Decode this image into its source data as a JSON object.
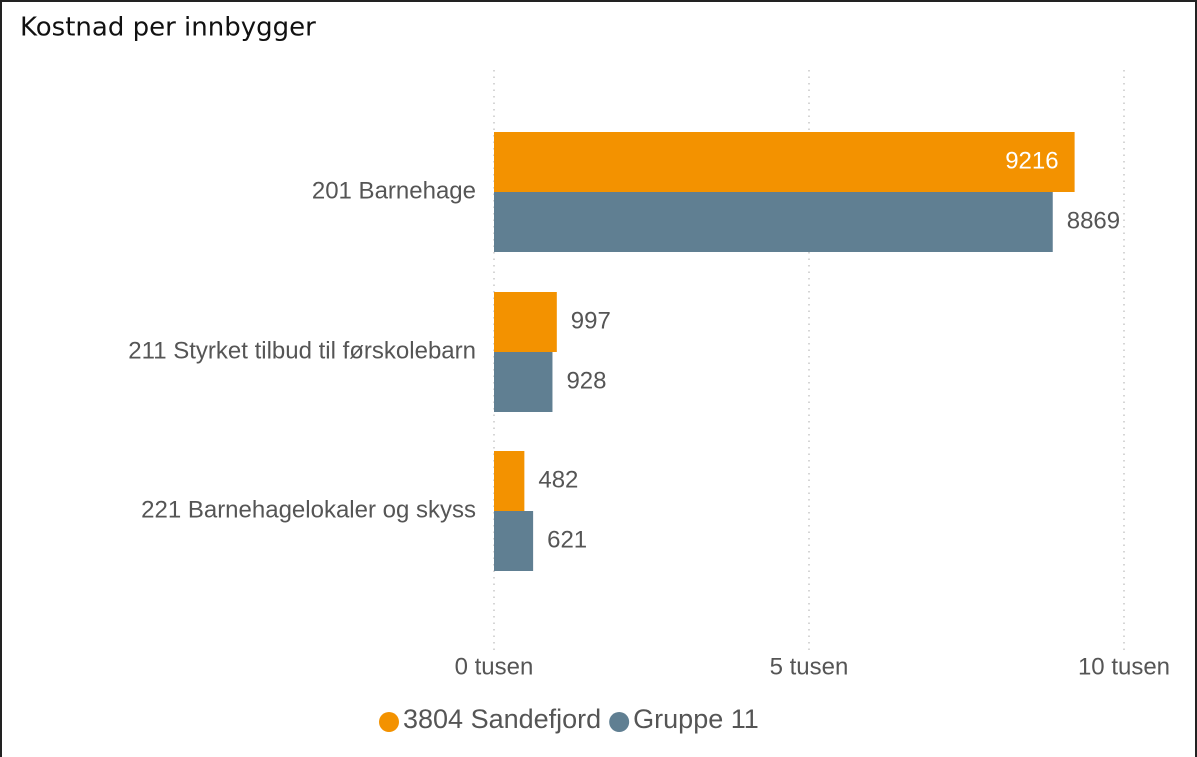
{
  "chart_data": {
    "type": "hbar",
    "title": "Kostnad per innbygger",
    "categories": [
      "201 Barnehage",
      "211 Styrket tilbud til førskolebarn",
      "221 Barnehagelokaler og skyss"
    ],
    "series": [
      {
        "name": "3804 Sandefjord",
        "color": "#f39200",
        "values": [
          9216,
          997,
          482
        ]
      },
      {
        "name": "Gruppe 11",
        "color": "#607f92",
        "values": [
          8869,
          928,
          621
        ]
      }
    ],
    "xlim": [
      0,
      10000
    ],
    "xticks": [
      {
        "value": 0,
        "label": "0 tusen"
      },
      {
        "value": 5000,
        "label": "5 tusen"
      },
      {
        "value": 10000,
        "label": "10 tusen"
      }
    ],
    "grid": true,
    "legend": "bottom"
  }
}
